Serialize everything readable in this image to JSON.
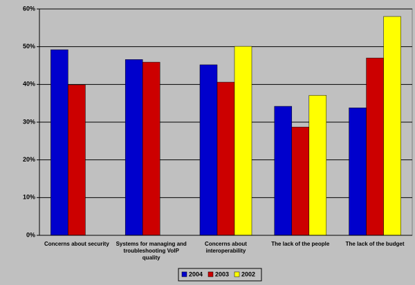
{
  "chart_data": {
    "type": "bar",
    "categories": [
      "Concerns about security",
      "Systems for managing and troubleshooting VoIP quality",
      "Concerns about interoperability",
      "The lack of the people",
      "The lack of the budget"
    ],
    "series": [
      {
        "name": "2004",
        "color": "#0000cc",
        "values": [
          49.2,
          46.6,
          45.2,
          34.2,
          33.8
        ]
      },
      {
        "name": "2003",
        "color": "#cc0000",
        "values": [
          39.9,
          45.9,
          40.6,
          28.7,
          47
        ]
      },
      {
        "name": "2002",
        "color": "#ffff00",
        "values": [
          null,
          null,
          50.1,
          37.1,
          58
        ]
      }
    ],
    "ylim": [
      0,
      60
    ],
    "yticks": [
      {
        "value": 0,
        "label": "0%"
      },
      {
        "value": 10,
        "label": "10%"
      },
      {
        "value": 20,
        "label": "20%"
      },
      {
        "value": 30,
        "label": "30%"
      },
      {
        "value": 40,
        "label": "40%"
      },
      {
        "value": 50,
        "label": "50%"
      },
      {
        "value": 60,
        "label": "60%"
      }
    ],
    "grid": true,
    "legend": "bottom"
  }
}
